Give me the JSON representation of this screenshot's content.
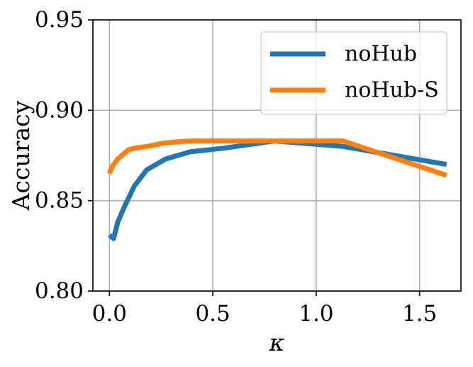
{
  "chart_data": {
    "type": "line",
    "title": "",
    "xlabel": "κ",
    "ylabel": "Accuracy",
    "xlim": [
      -0.08,
      1.7
    ],
    "ylim": [
      0.8,
      0.95
    ],
    "x_ticks": [
      0.0,
      0.5,
      1.0,
      1.5
    ],
    "x_tick_labels": [
      "0.0",
      "0.5",
      "1.0",
      "1.5"
    ],
    "y_ticks": [
      0.8,
      0.85,
      0.9,
      0.95
    ],
    "y_tick_labels": [
      "0.80",
      "0.85",
      "0.90",
      "0.95"
    ],
    "grid": true,
    "legend_position": "top-right",
    "series": [
      {
        "name": "noHub",
        "color": "#1f77b4",
        "x": [
          0.0,
          0.02,
          0.04,
          0.07,
          0.12,
          0.18,
          0.27,
          0.39,
          0.55,
          0.8,
          1.13,
          1.63
        ],
        "y": [
          0.831,
          0.829,
          0.838,
          0.846,
          0.858,
          0.867,
          0.873,
          0.877,
          0.879,
          0.883,
          0.88,
          0.87
        ]
      },
      {
        "name": "noHub-S",
        "color": "#ff7f0e",
        "x": [
          0.0,
          0.01,
          0.02,
          0.04,
          0.06,
          0.09,
          0.12,
          0.18,
          0.27,
          0.39,
          0.55,
          0.8,
          1.13,
          1.63
        ],
        "y": [
          0.865,
          0.868,
          0.87,
          0.873,
          0.875,
          0.878,
          0.879,
          0.88,
          0.882,
          0.883,
          0.883,
          0.883,
          0.883,
          0.864
        ]
      }
    ]
  }
}
